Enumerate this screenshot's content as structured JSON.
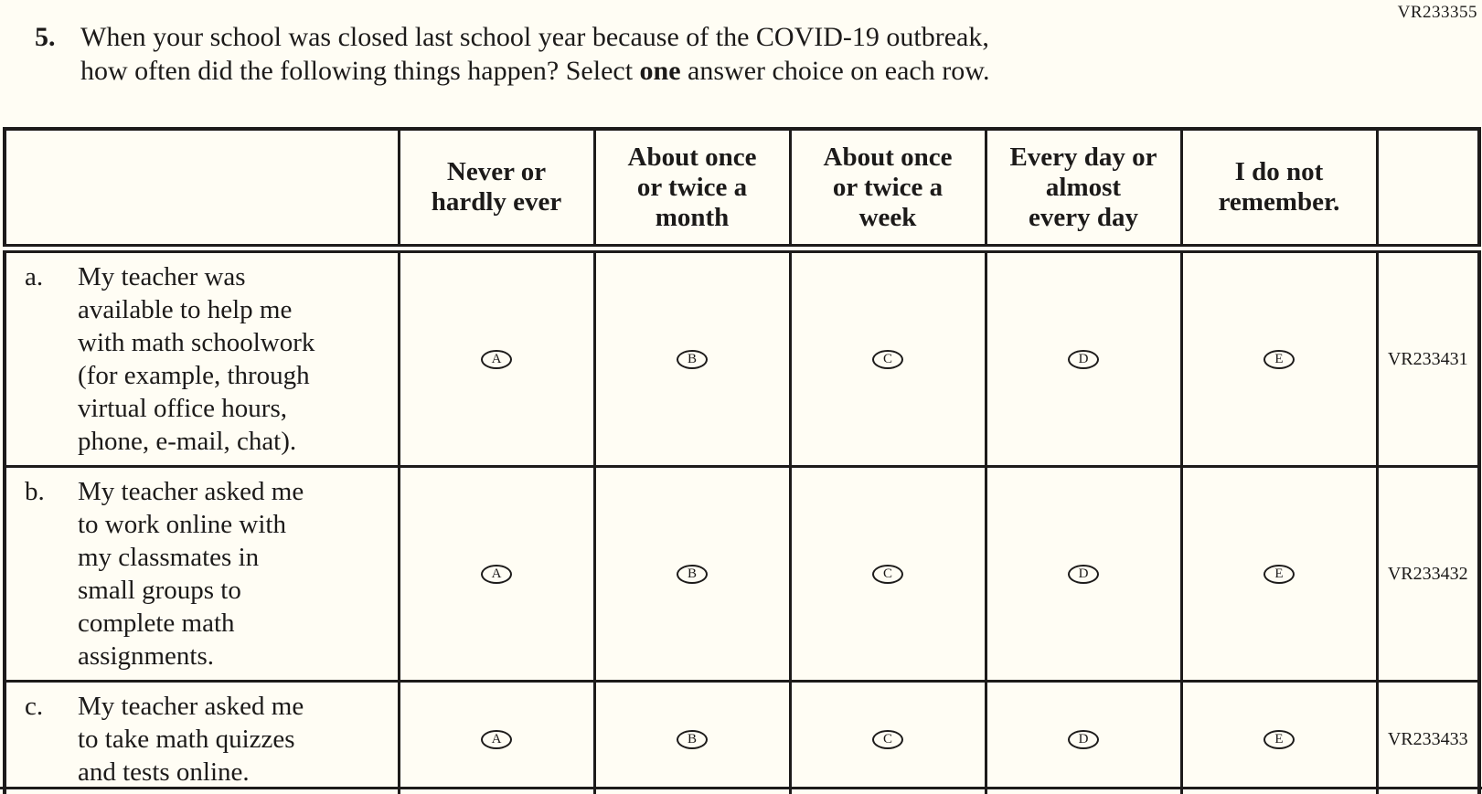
{
  "page_code": "VR233355",
  "question": {
    "number": "5.",
    "line1": "When your school was closed last school year because of the COVID-19 outbreak,",
    "line2_pre": "how often did the following things happen? Select ",
    "line2_bold": "one",
    "line2_post": " answer choice on each row."
  },
  "table": {
    "column_headers": [
      "Never or\nhardly ever",
      "About once\nor twice a\nmonth",
      "About once\nor twice a\nweek",
      "Every day or\nalmost\nevery day",
      "I do not\nremember."
    ],
    "option_letters": [
      "A",
      "B",
      "C",
      "D",
      "E"
    ],
    "rows": [
      {
        "letter": "a.",
        "stem": "My teacher was\navailable to help me\nwith math schoolwork\n(for example, through\nvirtual office hours,\nphone, e-mail, chat).",
        "code": "VR233431"
      },
      {
        "letter": "b.",
        "stem": "My teacher asked me\nto work online with\nmy classmates in\nsmall groups to\ncomplete math\nassignments.",
        "code": "VR233432"
      },
      {
        "letter": "c.",
        "stem": "My teacher asked me\nto take math quizzes\nand tests online.",
        "code": "VR233433"
      }
    ]
  }
}
